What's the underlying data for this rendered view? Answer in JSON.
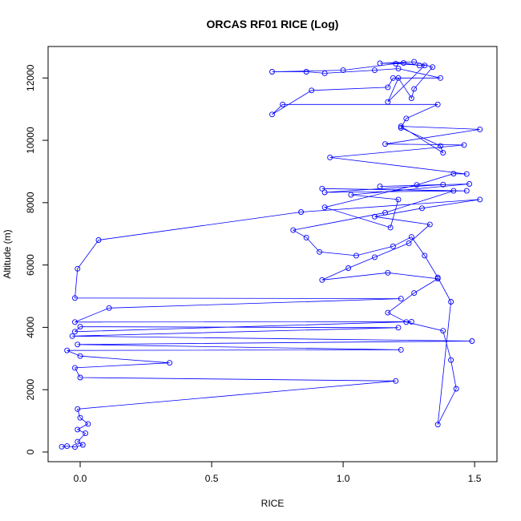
{
  "chart_data": {
    "type": "line",
    "title": "ORCAS RF01 RICE (Log)",
    "x_label": "RICE",
    "y_label": "Altitude (m)",
    "color": "#0000ff",
    "markers": true,
    "grid": false,
    "xlim": [
      -0.122,
      1.585
    ],
    "ylim": [
      -310,
      13010
    ],
    "xticks": [
      {
        "value": 0,
        "label": "0.0"
      },
      0.5,
      {
        "value": 1,
        "label": "1.0"
      },
      1.5
    ],
    "yticks": [
      0,
      2000,
      4000,
      6000,
      8000,
      10000,
      12000
    ],
    "x": [
      -0.07,
      -0.05,
      -0.02,
      0.01,
      -0.01,
      0.02,
      -0.01,
      0.03,
      0.0,
      -0.01,
      1.2,
      0.0,
      -0.02,
      0.34,
      0.0,
      -0.05,
      1.22,
      -0.01,
      1.49,
      -0.03,
      1.21,
      0.0,
      -0.02,
      1.26,
      -0.02,
      0.11,
      1.22,
      -0.02,
      -0.01,
      0.07,
      0.84,
      1.52,
      1.3,
      1.12,
      1.33,
      1.25,
      1.12,
      1.02,
      0.92,
      1.17,
      1.36,
      1.27,
      1.17,
      1.24,
      1.38,
      1.41,
      1.43,
      1.36,
      1.41,
      1.36,
      1.31,
      1.26,
      1.19,
      1.05,
      0.91,
      0.86,
      0.81,
      1.16,
      1.42,
      0.92,
      1.47,
      0.93,
      1.38,
      1.14,
      1.48,
      1.03,
      1.21,
      1.18,
      0.93,
      1.28,
      1.42,
      1.47,
      0.95,
      1.46,
      1.16,
      1.52,
      1.22,
      1.38,
      1.37,
      1.22,
      1.24,
      1.36,
      0.77,
      0.73,
      0.88,
      1.17,
      1.19,
      1.37,
      1.21,
      1.12,
      0.93,
      0.86,
      0.73,
      1.0,
      1.2,
      1.31,
      1.17,
      1.21,
      1.26,
      1.27,
      1.34,
      1.27,
      1.14,
      1.23,
      1.29
    ],
    "values": [
      170,
      190,
      160,
      230,
      330,
      600,
      720,
      900,
      1100,
      1380,
      2280,
      2390,
      2700,
      2860,
      3080,
      3260,
      3280,
      3450,
      3560,
      3720,
      3990,
      4020,
      3860,
      4180,
      4170,
      4620,
      4920,
      4940,
      5880,
      6800,
      7700,
      8100,
      7820,
      7550,
      7300,
      6700,
      6250,
      5900,
      5520,
      5750,
      5560,
      5100,
      4470,
      4170,
      3890,
      2950,
      2030,
      880,
      4820,
      5600,
      6300,
      6900,
      6600,
      6300,
      6420,
      6880,
      7120,
      7680,
      8380,
      8450,
      8380,
      8330,
      8580,
      8520,
      8600,
      8250,
      8100,
      7200,
      7850,
      8570,
      8930,
      8920,
      9450,
      9850,
      9880,
      10350,
      10450,
      9600,
      9820,
      10400,
      10700,
      11150,
      11150,
      10830,
      11600,
      11700,
      12000,
      12000,
      12300,
      12250,
      12150,
      12200,
      12200,
      12250,
      12460,
      12400,
      11230,
      12000,
      11350,
      11650,
      12350,
      12520,
      12470,
      12480,
      12400
    ]
  }
}
